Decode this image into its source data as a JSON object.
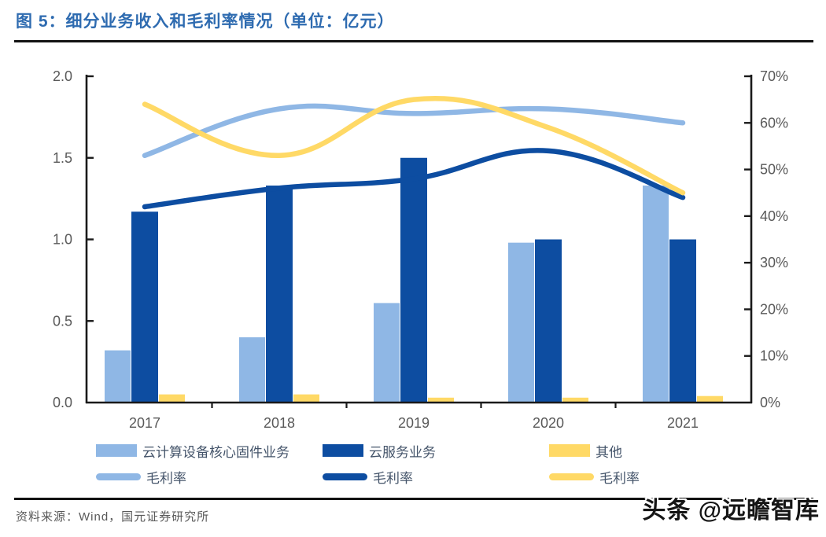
{
  "header": {
    "title": "图 5：细分业务收入和毛利率情况（单位：亿元）"
  },
  "chart_data": {
    "type": "bar+line",
    "categories": [
      "2017",
      "2018",
      "2019",
      "2020",
      "2021"
    ],
    "bar_series": [
      {
        "name": "云计算设备核心固件业务",
        "color": "#8fb7e5",
        "axis": "left",
        "values": [
          0.32,
          0.4,
          0.61,
          0.98,
          1.33
        ]
      },
      {
        "name": "云服务业务",
        "color": "#0d4da1",
        "axis": "left",
        "values": [
          1.17,
          1.33,
          1.5,
          1.0,
          1.0
        ]
      },
      {
        "name": "其他",
        "color": "#ffd966",
        "axis": "left",
        "values": [
          0.05,
          0.05,
          0.03,
          0.03,
          0.04
        ]
      }
    ],
    "line_series": [
      {
        "name": "毛利率",
        "color": "#8fb7e5",
        "axis": "right",
        "values_pct": [
          53,
          63,
          62,
          63,
          60
        ]
      },
      {
        "name": "毛利率",
        "color": "#0d4da1",
        "axis": "right",
        "values_pct": [
          42,
          46,
          48,
          54,
          44
        ]
      },
      {
        "name": "毛利率",
        "color": "#ffd966",
        "axis": "right",
        "values_pct": [
          64,
          53,
          65,
          59,
          45
        ]
      }
    ],
    "left_axis": {
      "tick_labels": [
        "0.0",
        "0.5",
        "1.0",
        "1.5",
        "2.0"
      ],
      "min": 0,
      "max": 2
    },
    "right_axis": {
      "tick_labels": [
        "0%",
        "10%",
        "20%",
        "30%",
        "40%",
        "50%",
        "60%",
        "70%"
      ],
      "min": 0,
      "max": 70
    },
    "grid": false,
    "legend_position": "bottom",
    "axis_color": "#1a1a1a",
    "tick_label_color": "#595959"
  },
  "legend": {
    "row1": [
      {
        "label": "云计算设备核心固件业务",
        "color": "#8fb7e5"
      },
      {
        "label": "云服务业务",
        "color": "#0d4da1"
      },
      {
        "label": "其他",
        "color": "#ffd966"
      }
    ],
    "row2": [
      {
        "label": "毛利率",
        "color": "#8fb7e5"
      },
      {
        "label": "毛利率",
        "color": "#0d4da1"
      },
      {
        "label": "毛利率",
        "color": "#ffd966"
      }
    ]
  },
  "footer": {
    "source": "资料来源：Wind，国元证券研究所",
    "watermark": "头条 @远瞻智库"
  }
}
